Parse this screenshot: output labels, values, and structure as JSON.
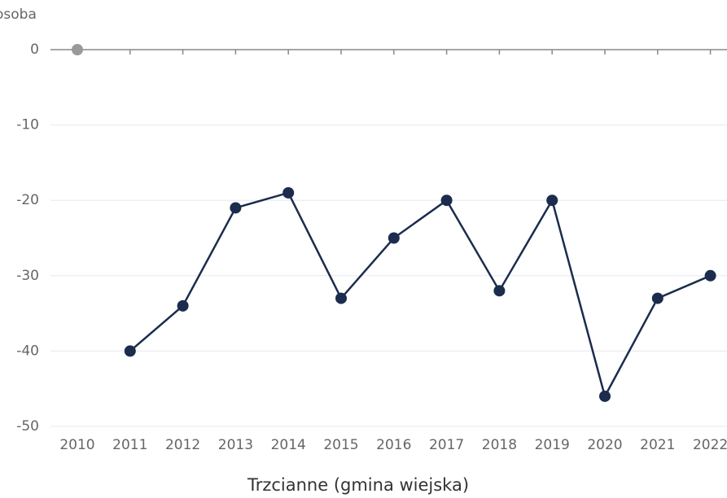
{
  "chart_data": {
    "type": "line",
    "y_label": "osoba",
    "x_label": "Trzcianne (gmina wiejska)",
    "categories": [
      "2010",
      "2011",
      "2012",
      "2013",
      "2014",
      "2015",
      "2016",
      "2017",
      "2018",
      "2019",
      "2020",
      "2021",
      "2022"
    ],
    "series": [
      {
        "color": "#1b2c4d",
        "values": [
          null,
          -40,
          -34,
          -21,
          -19,
          -33,
          -25,
          -20,
          -32,
          -20,
          -46,
          -33,
          -30
        ]
      },
      {
        "color": "#999999",
        "values": [
          0,
          null,
          null,
          null,
          null,
          null,
          null,
          null,
          null,
          null,
          null,
          null,
          null
        ]
      }
    ],
    "ylim": [
      -50,
      0
    ],
    "yticks": [
      0,
      -10,
      -20,
      -30,
      -40,
      -50
    ],
    "grid": true
  }
}
